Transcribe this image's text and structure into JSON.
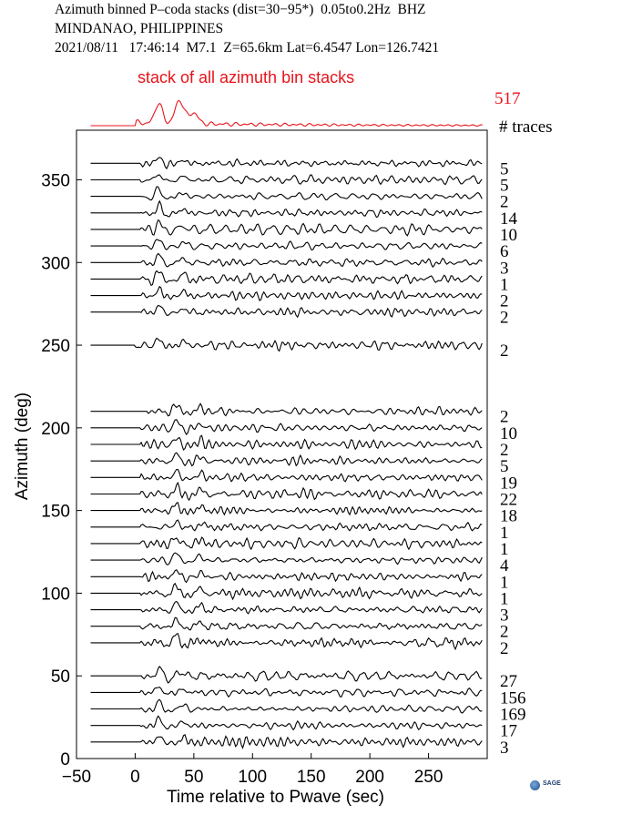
{
  "header": {
    "line1": "Azimuth binned P–coda stacks (dist=30−95*)  0.05to0.2Hz  BHZ",
    "line2": "MINDANAO, PHILIPPINES",
    "line3": "2021/08/11   17:46:14  M7.1  Z=65.6km Lat=6.4547 Lon=126.7421"
  },
  "colors": {
    "trace": "#000000",
    "stack": "#e8141a"
  },
  "logo": {
    "text": "SAGE",
    "icon": "sage-globe-icon"
  },
  "chart_data": {
    "type": "line",
    "title": "Azimuth binned P–coda stacks (dist=30−95*)  0.05to0.2Hz  BHZ",
    "xlabel": "Time relative to Pwave (sec)",
    "ylabel": "Azimuth (deg)",
    "xlim": [
      -50,
      300
    ],
    "ylim": [
      0,
      380
    ],
    "x_ticks": [
      -50,
      0,
      50,
      100,
      150,
      200,
      250
    ],
    "x_tick_labels": [
      "−50",
      "0",
      "50",
      "100",
      "150",
      "200",
      "250"
    ],
    "y_ticks": [
      0,
      50,
      100,
      150,
      200,
      250,
      300,
      350
    ],
    "y_tick_labels": [
      "0",
      "50",
      "100",
      "150",
      "200",
      "250",
      "300",
      "350"
    ],
    "top_stack": {
      "label": "stack of all azimuth bin stacks",
      "count": "517",
      "count_header": "# traces"
    },
    "series": [
      {
        "azimuth": 360,
        "count": "5"
      },
      {
        "azimuth": 350,
        "count": "5"
      },
      {
        "azimuth": 340,
        "count": "2"
      },
      {
        "azimuth": 330,
        "count": "14"
      },
      {
        "azimuth": 320,
        "count": "10"
      },
      {
        "azimuth": 310,
        "count": "6"
      },
      {
        "azimuth": 300,
        "count": "3"
      },
      {
        "azimuth": 290,
        "count": "1"
      },
      {
        "azimuth": 280,
        "count": "2"
      },
      {
        "azimuth": 270,
        "count": "2"
      },
      {
        "azimuth": 250,
        "count": "2"
      },
      {
        "azimuth": 210,
        "count": "2"
      },
      {
        "azimuth": 200,
        "count": "10"
      },
      {
        "azimuth": 190,
        "count": "2"
      },
      {
        "azimuth": 180,
        "count": "5"
      },
      {
        "azimuth": 170,
        "count": "19"
      },
      {
        "azimuth": 160,
        "count": "22"
      },
      {
        "azimuth": 150,
        "count": "18"
      },
      {
        "azimuth": 140,
        "count": "1"
      },
      {
        "azimuth": 130,
        "count": "1"
      },
      {
        "azimuth": 120,
        "count": "4"
      },
      {
        "azimuth": 110,
        "count": "1"
      },
      {
        "azimuth": 100,
        "count": "1"
      },
      {
        "azimuth": 90,
        "count": "3"
      },
      {
        "azimuth": 80,
        "count": "2"
      },
      {
        "azimuth": 70,
        "count": "2"
      },
      {
        "azimuth": 50,
        "count": "27"
      },
      {
        "azimuth": 40,
        "count": "156"
      },
      {
        "azimuth": 30,
        "count": "169"
      },
      {
        "azimuth": 20,
        "count": "17"
      },
      {
        "azimuth": 10,
        "count": "3"
      }
    ]
  }
}
